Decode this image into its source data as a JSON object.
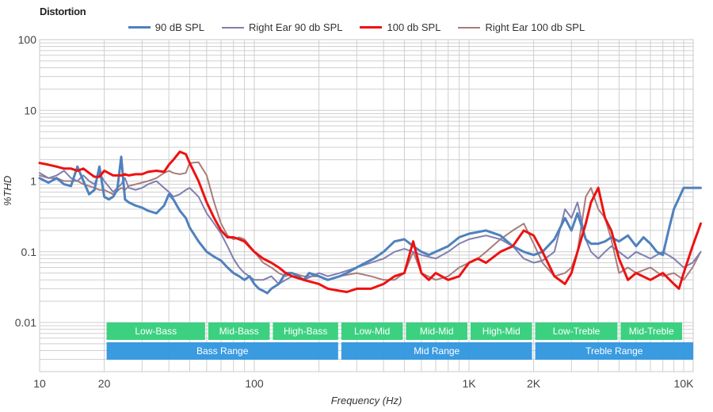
{
  "chart_data": {
    "type": "line",
    "title": "Distortion",
    "xlabel": "Frequency (Hz)",
    "ylabel": "%THD",
    "xscale": "log",
    "yscale": "log",
    "xlim": [
      10,
      12000
    ],
    "ylim": [
      0.002,
      100
    ],
    "grid": true,
    "legend_position": "top",
    "x_ticks": [
      {
        "value": 10,
        "label": "10"
      },
      {
        "value": 20,
        "label": "20"
      },
      {
        "value": 100,
        "label": "100"
      },
      {
        "value": 1000,
        "label": "1K"
      },
      {
        "value": 2000,
        "label": "2K"
      },
      {
        "value": 10000,
        "label": "10K"
      }
    ],
    "y_ticks": [
      {
        "value": 100,
        "label": "100"
      },
      {
        "value": 10,
        "label": "10"
      },
      {
        "value": 1,
        "label": "1"
      },
      {
        "value": 0.1,
        "label": "0.1"
      },
      {
        "value": 0.01,
        "label": "0.01"
      }
    ],
    "bands": [
      {
        "label": "Low-Bass",
        "from": 20,
        "to": 60,
        "row": 1,
        "color": "#36cf7c"
      },
      {
        "label": "Mid-Bass",
        "from": 60,
        "to": 120,
        "row": 1,
        "color": "#36cf7c"
      },
      {
        "label": "High-Bass",
        "from": 120,
        "to": 250,
        "row": 1,
        "color": "#36cf7c"
      },
      {
        "label": "Low-Mid",
        "from": 250,
        "to": 500,
        "row": 1,
        "color": "#36cf7c"
      },
      {
        "label": "Mid-Mid",
        "from": 500,
        "to": 1000,
        "row": 1,
        "color": "#36cf7c"
      },
      {
        "label": "High-Mid",
        "from": 1000,
        "to": 2000,
        "row": 1,
        "color": "#36cf7c"
      },
      {
        "label": "Low-Treble",
        "from": 2000,
        "to": 5000,
        "row": 1,
        "color": "#36cf7c"
      },
      {
        "label": "Mid-Treble",
        "from": 5000,
        "to": 10000,
        "row": 1,
        "color": "#36cf7c"
      },
      {
        "label": "Bass Range",
        "from": 20,
        "to": 250,
        "row": 2,
        "color": "#3498e0"
      },
      {
        "label": "Mid Range",
        "from": 250,
        "to": 2000,
        "row": 2,
        "color": "#3498e0"
      },
      {
        "label": "Treble Range",
        "from": 2000,
        "to": 12000,
        "row": 2,
        "color": "#3498e0"
      }
    ],
    "series": [
      {
        "name": "90 dB SPL",
        "color": "#4f81bd",
        "width": 3,
        "x": [
          10,
          11,
          12,
          13,
          14,
          15,
          16,
          17,
          18,
          19,
          20,
          21,
          22,
          23,
          24,
          25,
          26,
          28,
          30,
          32,
          35,
          38,
          40,
          42,
          45,
          48,
          50,
          55,
          60,
          65,
          70,
          75,
          80,
          85,
          90,
          95,
          100,
          105,
          110,
          115,
          120,
          130,
          140,
          150,
          160,
          170,
          180,
          200,
          220,
          250,
          270,
          300,
          330,
          360,
          400,
          450,
          500,
          550,
          600,
          650,
          700,
          800,
          900,
          1000,
          1100,
          1200,
          1400,
          1600,
          1800,
          2000,
          2200,
          2500,
          2800,
          3000,
          3200,
          3500,
          3700,
          4000,
          4300,
          4600,
          5000,
          5500,
          6000,
          6500,
          7000,
          7500,
          8000,
          8500,
          9000,
          10000,
          11000,
          12000
        ],
        "values": [
          1.1,
          0.95,
          1.1,
          0.9,
          0.85,
          1.6,
          1.0,
          0.65,
          0.75,
          1.6,
          0.6,
          0.55,
          0.6,
          0.75,
          2.2,
          0.55,
          0.5,
          0.45,
          0.42,
          0.38,
          0.35,
          0.45,
          0.65,
          0.55,
          0.38,
          0.3,
          0.22,
          0.14,
          0.1,
          0.085,
          0.075,
          0.06,
          0.05,
          0.045,
          0.04,
          0.045,
          0.035,
          0.03,
          0.028,
          0.026,
          0.03,
          0.035,
          0.05,
          0.05,
          0.045,
          0.04,
          0.05,
          0.045,
          0.04,
          0.045,
          0.05,
          0.06,
          0.07,
          0.08,
          0.1,
          0.14,
          0.15,
          0.12,
          0.1,
          0.09,
          0.1,
          0.12,
          0.16,
          0.18,
          0.19,
          0.2,
          0.17,
          0.12,
          0.1,
          0.09,
          0.1,
          0.15,
          0.3,
          0.2,
          0.35,
          0.15,
          0.13,
          0.13,
          0.14,
          0.16,
          0.14,
          0.17,
          0.12,
          0.16,
          0.13,
          0.1,
          0.09,
          0.2,
          0.4,
          0.8,
          0.8,
          0.8
        ]
      },
      {
        "name": "Right Ear 90 db SPL",
        "color": "#7f7fb0",
        "width": 2,
        "x": [
          10,
          11,
          12,
          13,
          14,
          15,
          16,
          17,
          18,
          19,
          20,
          22,
          24,
          25,
          26,
          28,
          30,
          32,
          35,
          38,
          40,
          42,
          45,
          48,
          50,
          55,
          60,
          65,
          70,
          75,
          80,
          85,
          90,
          100,
          110,
          120,
          130,
          140,
          150,
          170,
          200,
          220,
          250,
          300,
          350,
          400,
          450,
          500,
          550,
          600,
          700,
          800,
          900,
          1000,
          1100,
          1200,
          1400,
          1600,
          1800,
          2000,
          2200,
          2500,
          2800,
          3000,
          3200,
          3500,
          3700,
          4000,
          4300,
          4600,
          5000,
          5500,
          6000,
          7000,
          8000,
          9000,
          10000,
          11000,
          12000
        ],
        "values": [
          1.3,
          1.1,
          1.2,
          1.4,
          1.1,
          1.0,
          1.2,
          1.0,
          0.9,
          1.3,
          1.0,
          0.7,
          0.9,
          1.1,
          0.8,
          0.75,
          0.8,
          0.9,
          1.0,
          0.8,
          0.7,
          0.6,
          0.65,
          0.75,
          0.8,
          0.6,
          0.35,
          0.25,
          0.18,
          0.12,
          0.08,
          0.06,
          0.05,
          0.04,
          0.04,
          0.045,
          0.035,
          0.04,
          0.045,
          0.04,
          0.05,
          0.045,
          0.05,
          0.06,
          0.07,
          0.08,
          0.1,
          0.11,
          0.1,
          0.09,
          0.08,
          0.1,
          0.13,
          0.15,
          0.16,
          0.17,
          0.15,
          0.12,
          0.08,
          0.07,
          0.075,
          0.1,
          0.4,
          0.3,
          0.5,
          0.15,
          0.1,
          0.08,
          0.1,
          0.12,
          0.1,
          0.08,
          0.1,
          0.08,
          0.1,
          0.08,
          0.06,
          0.07,
          0.1
        ]
      },
      {
        "name": "100 db SPL",
        "color": "#ee1111",
        "width": 3,
        "x": [
          10,
          11,
          12,
          13,
          14,
          15,
          16,
          17,
          18,
          19,
          20,
          22,
          24,
          25,
          26,
          28,
          30,
          32,
          35,
          38,
          40,
          42,
          45,
          48,
          50,
          55,
          60,
          65,
          70,
          75,
          80,
          85,
          90,
          100,
          110,
          120,
          130,
          140,
          150,
          170,
          200,
          220,
          250,
          270,
          300,
          350,
          400,
          450,
          500,
          550,
          600,
          650,
          700,
          800,
          900,
          1000,
          1100,
          1200,
          1400,
          1600,
          1800,
          2000,
          2200,
          2500,
          2800,
          3000,
          3200,
          3500,
          3700,
          4000,
          4300,
          4600,
          5000,
          5500,
          6000,
          7000,
          8000,
          9000,
          9500,
          10000,
          11000,
          12000
        ],
        "values": [
          1.8,
          1.7,
          1.6,
          1.5,
          1.5,
          1.4,
          1.5,
          1.3,
          1.15,
          1.15,
          1.4,
          1.2,
          1.2,
          1.25,
          1.2,
          1.25,
          1.25,
          1.35,
          1.4,
          1.35,
          1.7,
          2.0,
          2.6,
          2.4,
          1.8,
          1.0,
          0.5,
          0.3,
          0.2,
          0.16,
          0.16,
          0.15,
          0.14,
          0.1,
          0.08,
          0.07,
          0.06,
          0.05,
          0.045,
          0.04,
          0.035,
          0.03,
          0.028,
          0.027,
          0.03,
          0.03,
          0.035,
          0.045,
          0.05,
          0.14,
          0.05,
          0.04,
          0.05,
          0.04,
          0.045,
          0.07,
          0.08,
          0.07,
          0.1,
          0.12,
          0.2,
          0.17,
          0.1,
          0.045,
          0.035,
          0.05,
          0.1,
          0.25,
          0.5,
          0.8,
          0.3,
          0.2,
          0.08,
          0.04,
          0.05,
          0.04,
          0.05,
          0.035,
          0.03,
          0.05,
          0.12,
          0.25
        ]
      },
      {
        "name": "Right Ear 100 db SPL",
        "color": "#a97c7c",
        "width": 2,
        "x": [
          10,
          11,
          12,
          13,
          14,
          15,
          16,
          17,
          18,
          19,
          20,
          22,
          24,
          25,
          26,
          28,
          30,
          32,
          35,
          38,
          40,
          42,
          45,
          48,
          50,
          55,
          60,
          65,
          70,
          75,
          80,
          85,
          90,
          100,
          110,
          120,
          130,
          140,
          150,
          170,
          200,
          220,
          250,
          300,
          350,
          400,
          450,
          500,
          550,
          600,
          700,
          800,
          900,
          1000,
          1100,
          1200,
          1400,
          1600,
          1800,
          2000,
          2200,
          2500,
          2800,
          3000,
          3200,
          3500,
          3700,
          4000,
          4300,
          4600,
          5000,
          5500,
          6000,
          7000,
          8000,
          9000,
          10000,
          11000,
          12000
        ],
        "values": [
          1.2,
          1.1,
          1.1,
          1.0,
          1.0,
          1.0,
          0.9,
          0.85,
          0.8,
          0.75,
          0.75,
          0.65,
          0.8,
          0.75,
          0.85,
          0.9,
          0.95,
          1.0,
          1.1,
          1.3,
          1.4,
          1.3,
          1.25,
          1.3,
          1.8,
          1.85,
          1.2,
          0.5,
          0.25,
          0.17,
          0.15,
          0.16,
          0.15,
          0.1,
          0.07,
          0.06,
          0.05,
          0.045,
          0.05,
          0.045,
          0.045,
          0.04,
          0.045,
          0.05,
          0.045,
          0.04,
          0.04,
          0.05,
          0.1,
          0.05,
          0.04,
          0.045,
          0.06,
          0.07,
          0.08,
          0.1,
          0.15,
          0.2,
          0.25,
          0.13,
          0.07,
          0.045,
          0.05,
          0.06,
          0.1,
          0.6,
          0.8,
          0.4,
          0.3,
          0.15,
          0.05,
          0.06,
          0.05,
          0.06,
          0.045,
          0.05,
          0.04,
          0.06,
          0.1
        ]
      }
    ]
  }
}
